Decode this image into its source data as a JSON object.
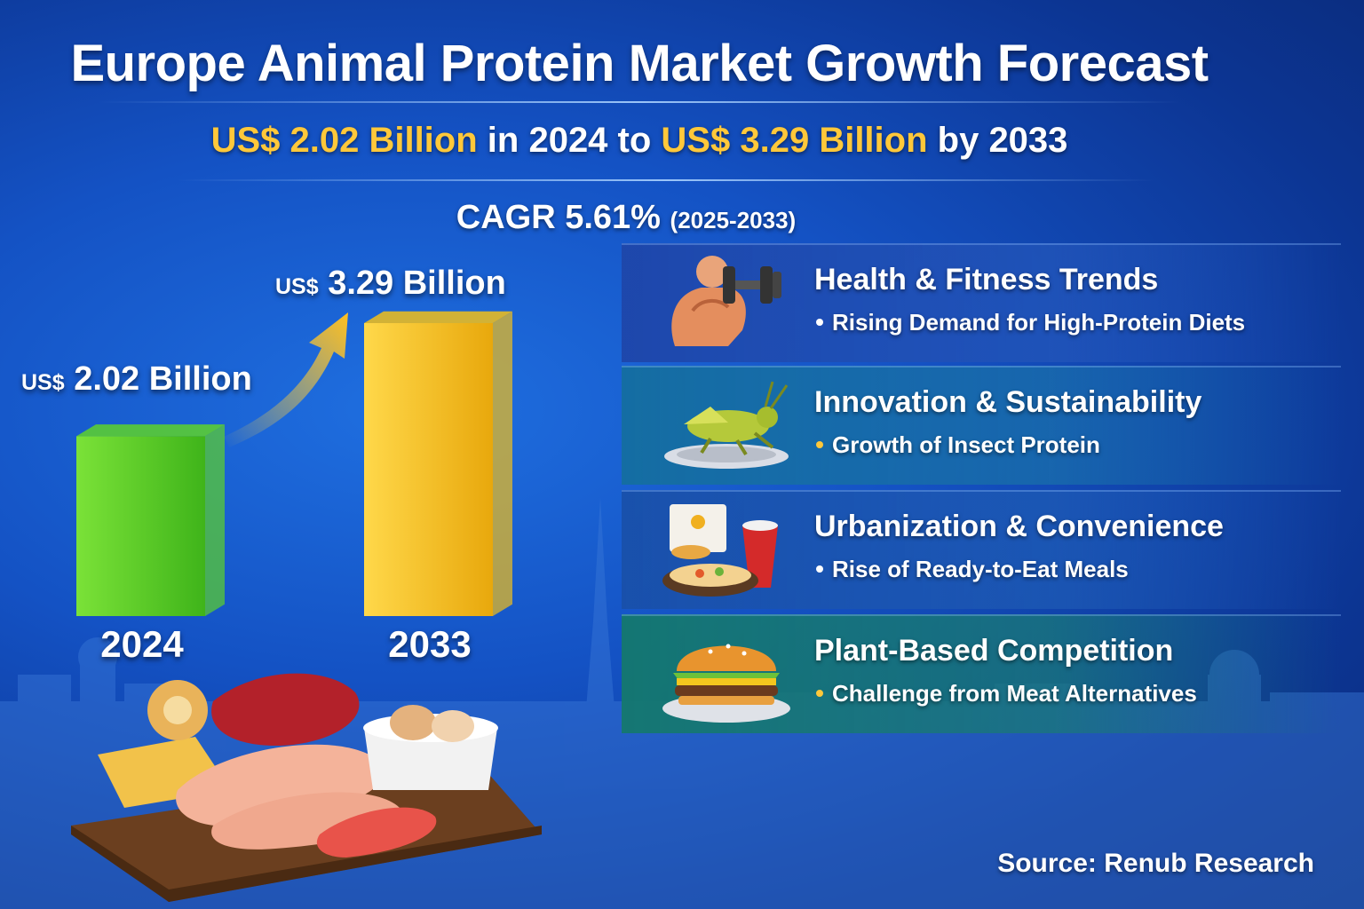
{
  "header": {
    "title": "Europe Animal Protein Market Growth Forecast",
    "subtitle": {
      "value_start": "US$ 2.02 Billion",
      "mid_text": " in 2024 to ",
      "value_end": "US$ 3.29 Billion",
      "end_text": " by 2033"
    },
    "cagr": "CAGR 5.61%",
    "cagr_period": "(2025-2033)"
  },
  "chart_data": {
    "type": "bar",
    "categories": [
      "2024",
      "2033"
    ],
    "values": [
      2.02,
      3.29
    ],
    "unit": "US$ Billion",
    "value_labels": [
      {
        "currency": "US$",
        "amount": "2.02 Billion"
      },
      {
        "currency": "US$",
        "amount": "3.29 Billion"
      }
    ],
    "bar_colors": [
      "#5ed22a",
      "#f2bf1a"
    ],
    "title": "",
    "xlabel": "",
    "ylabel": "",
    "ylim": [
      0,
      3.29
    ],
    "grid": false
  },
  "drivers": [
    {
      "title": "Health & Fitness Trends",
      "sub": "Rising Demand for High-Protein Diets",
      "icon": "muscle-dumbbell-icon",
      "bullet_color": "#ffffff"
    },
    {
      "title": "Innovation & Sustainability",
      "sub": "Growth of Insect Protein",
      "icon": "insect-dish-icon",
      "bullet_color": "#ffc83a"
    },
    {
      "title": "Urbanization & Convenience",
      "sub": "Rise of Ready-to-Eat Meals",
      "icon": "ready-meal-icon",
      "bullet_color": "#ffffff"
    },
    {
      "title": "Plant-Based Competition",
      "sub": "Challenge from Meat Alternatives",
      "icon": "burger-icon",
      "bullet_color": "#ffc83a"
    }
  ],
  "colors": {
    "accent_gold": "#ffc83a",
    "background": "#1452c4"
  },
  "footer": {
    "source": "Source: Renub Research"
  }
}
